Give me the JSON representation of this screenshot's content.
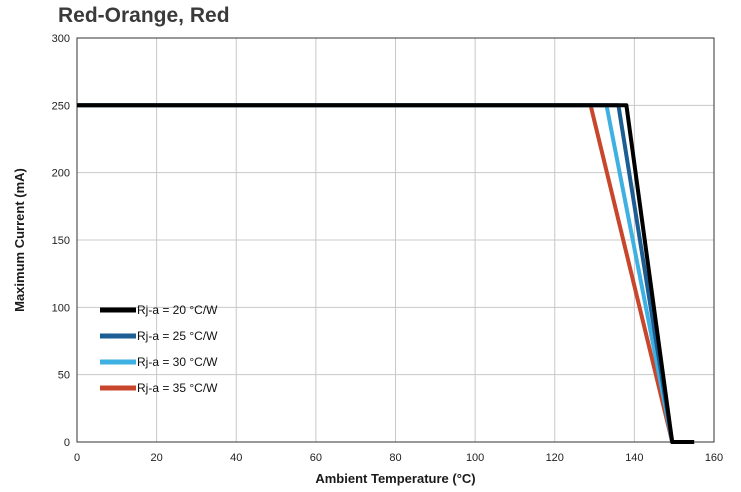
{
  "chart_data": {
    "type": "line",
    "title": "Red-Orange, Red",
    "xlabel": "Ambient Temperature (°C)",
    "ylabel": "Maximum Current (mA)",
    "xlim": [
      0,
      160
    ],
    "ylim": [
      0,
      300
    ],
    "xticks": [
      "0",
      "20",
      "40",
      "60",
      "80",
      "100",
      "120",
      "140",
      "160"
    ],
    "yticks": [
      "0",
      "50",
      "100",
      "150",
      "200",
      "250",
      "300"
    ],
    "grid": true,
    "legend_position": "bottom-left",
    "series": [
      {
        "name": "Rj-a = 35 °C/W",
        "color": "#c8472c",
        "points": [
          [
            0,
            250
          ],
          [
            129,
            250
          ],
          [
            149.5,
            0
          ],
          [
            155,
            0
          ]
        ]
      },
      {
        "name": "Rj-a = 30 °C/W",
        "color": "#3eb0e2",
        "points": [
          [
            0,
            250
          ],
          [
            133,
            250
          ],
          [
            149.5,
            0
          ],
          [
            155,
            0
          ]
        ]
      },
      {
        "name": "Rj-a = 25 °C/W",
        "color": "#1c5e93",
        "points": [
          [
            0,
            250
          ],
          [
            136,
            250
          ],
          [
            149.5,
            0
          ],
          [
            155,
            0
          ]
        ]
      },
      {
        "name": "Rj-a = 20 °C/W",
        "color": "#000000",
        "points": [
          [
            0,
            250
          ],
          [
            138,
            250
          ],
          [
            149.5,
            0
          ],
          [
            155,
            0
          ]
        ]
      }
    ]
  }
}
